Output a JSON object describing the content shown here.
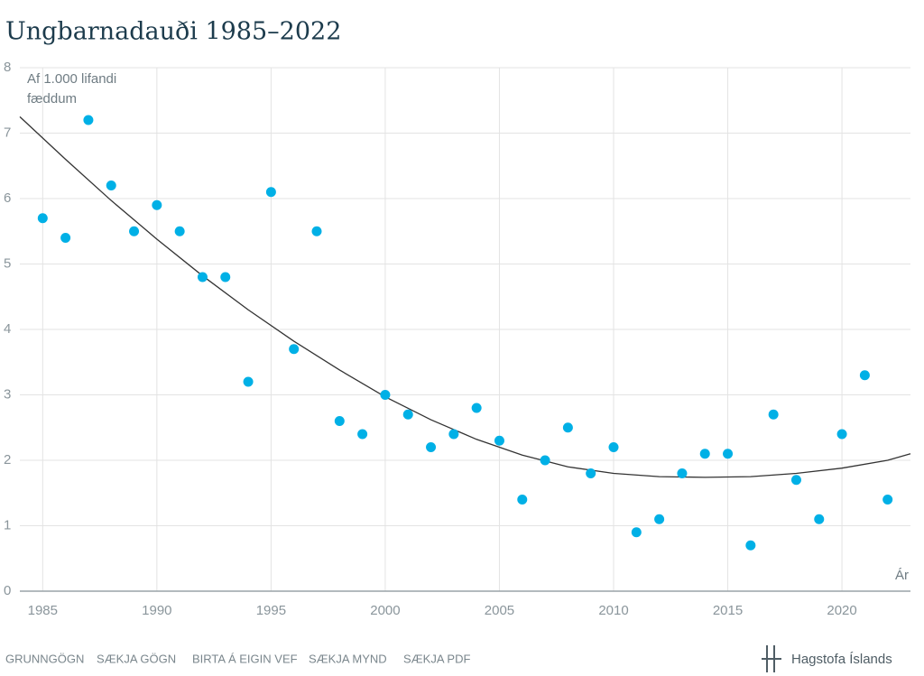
{
  "chart_data": {
    "type": "scatter",
    "title": "Ungbarnadauði 1985–2022",
    "y_label": [
      "Af 1.000 lifandi",
      "fæddum"
    ],
    "x_label": "Ár",
    "x": [
      1985,
      1986,
      1987,
      1988,
      1989,
      1990,
      1991,
      1992,
      1993,
      1994,
      1995,
      1996,
      1997,
      1998,
      1999,
      2000,
      2001,
      2002,
      2003,
      2004,
      2005,
      2006,
      2007,
      2008,
      2009,
      2010,
      2011,
      2012,
      2013,
      2014,
      2015,
      2016,
      2017,
      2018,
      2019,
      2020,
      2021,
      2022
    ],
    "values": [
      5.7,
      5.4,
      7.2,
      6.2,
      5.5,
      5.9,
      5.5,
      4.8,
      4.8,
      3.2,
      6.1,
      3.7,
      5.5,
      2.6,
      2.4,
      3.0,
      2.7,
      2.2,
      2.4,
      2.8,
      2.3,
      1.4,
      2.0,
      2.5,
      1.8,
      2.2,
      0.9,
      1.1,
      1.8,
      2.1,
      2.1,
      0.7,
      2.7,
      1.7,
      1.1,
      2.4,
      3.3,
      1.4
    ],
    "color": "#00b0e6",
    "trend": {
      "x": [
        1984,
        1986,
        1988,
        1990,
        1992,
        1994,
        1996,
        1998,
        2000,
        2002,
        2004,
        2006,
        2008,
        2010,
        2012,
        2014,
        2016,
        2018,
        2020,
        2022,
        2023
      ],
      "values": [
        7.25,
        6.6,
        5.97,
        5.38,
        4.82,
        4.3,
        3.82,
        3.38,
        2.97,
        2.62,
        2.32,
        2.08,
        1.9,
        1.8,
        1.75,
        1.74,
        1.75,
        1.8,
        1.88,
        2.0,
        2.1
      ],
      "color": "#333333"
    },
    "xlim": [
      1984,
      2023
    ],
    "ylim": [
      0,
      8
    ],
    "xticks": [
      1985,
      1990,
      1995,
      2000,
      2005,
      2010,
      2015,
      2020
    ],
    "yticks": [
      0,
      1,
      2,
      3,
      4,
      5,
      6,
      7,
      8
    ],
    "grid": true
  },
  "footer": {
    "links": [
      "GRUNNGÖGN",
      "SÆKJA GÖGN",
      "BIRTA Á EIGIN VEF",
      "SÆKJA MYND",
      "SÆKJA PDF"
    ],
    "logo": "Hagstofa Íslands"
  }
}
